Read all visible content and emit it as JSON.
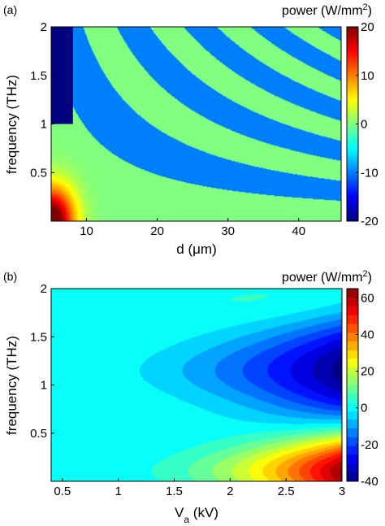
{
  "chart_data": [
    {
      "type": "heatmap",
      "panel_label": "(a)",
      "xlabel": "d (",
      "xlabel_greek": "μ",
      "xlabel_unit": "m)",
      "ylabel": "frequency (THz)",
      "xlim": [
        5,
        46
      ],
      "ylim": [
        0,
        2
      ],
      "x_ticks": [
        10,
        20,
        30,
        40
      ],
      "x_tick_labels": [
        "10",
        "20",
        "30",
        "40"
      ],
      "y_ticks": [
        0.5,
        1,
        1.5,
        2
      ],
      "y_tick_labels": [
        "0.5",
        "1",
        "1.5",
        "2"
      ],
      "colorbar": {
        "title": "power (W/mm",
        "title_sup": "2",
        "title_end": ")",
        "range": [
          -20,
          20
        ],
        "ticks": [
          -20,
          -10,
          0,
          10,
          20
        ],
        "tick_labels": [
          "-20",
          "-10",
          "0",
          "10",
          "20"
        ],
        "colormap": "jet"
      },
      "description_of_field": "alternating bands of value about -10 (blue) and 0 (cyan) following hyperbolic curves frequency*d ≈ constant; deep blue (≈ -20) near d=5-8 µm, f=1-2 THz; yellow to red (≈ 10 to 20) near d=5-10 µm, f<0.5 THz",
      "band_levels": [
        -10,
        0
      ],
      "peak_high": 20,
      "peak_low": -20,
      "grid": false
    },
    {
      "type": "heatmap",
      "panel_label": "(b)",
      "xlabel": "V",
      "xlabel_sub": "a",
      "xlabel_unit": " (kV)",
      "ylabel": "frequency (THz)",
      "xlim": [
        0.4,
        3
      ],
      "ylim": [
        0,
        2
      ],
      "x_ticks": [
        0.5,
        1,
        1.5,
        2,
        2.5,
        3
      ],
      "x_tick_labels": [
        "0.5",
        "1",
        "1.5",
        "2",
        "2.5",
        "3"
      ],
      "y_ticks": [
        0.5,
        1,
        1.5,
        2
      ],
      "y_tick_labels": [
        "0.5",
        "1",
        "1.5",
        "2"
      ],
      "colorbar": {
        "title": "power (W/mm",
        "title_sup": "2",
        "title_end": ")",
        "range": [
          -40,
          65
        ],
        "ticks": [
          -40,
          -20,
          0,
          20,
          40,
          60
        ],
        "tick_labels": [
          "-40",
          "-20",
          "0",
          "20",
          "40",
          "60"
        ],
        "colormap": "jet"
      },
      "description_of_field": "background ≈ 0 (cyan); negative lobe centred near f=1.15 THz growing with V_a reaching ≈ -40 at V_a=3 kV; positive lobe near f≈0.1 THz growing with V_a reaching ≈ 65 at V_a=3 kV; weak positive lobe near f≈1.8 THz",
      "negative_lobe_center_f": 1.15,
      "positive_lobe_center_f": 0.1,
      "min_value": -40,
      "max_value": 65,
      "grid": false
    }
  ]
}
